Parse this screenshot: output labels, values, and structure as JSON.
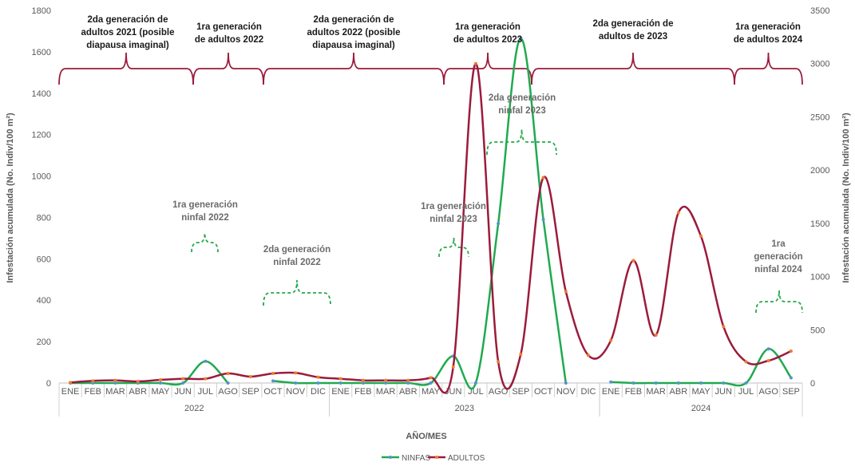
{
  "chart_data": {
    "type": "line",
    "xlabel": "AÑO/MES",
    "ylabel_left": "Infestación acumulada (No. Indiv/100 m²)",
    "ylabel_right": "Infestación acumulada (No. Indiv/100 m²)",
    "ylim_left": [
      0,
      1800
    ],
    "ylim_right": [
      0,
      3500
    ],
    "yticks_left": [
      "0",
      "200",
      "400",
      "600",
      "800",
      "1000",
      "1200",
      "1400",
      "1600",
      "1800"
    ],
    "yticks_right": [
      "0",
      "500",
      "1000",
      "1500",
      "2000",
      "2500",
      "3000",
      "3500"
    ],
    "months": [
      "ENE",
      "FEB",
      "MAR",
      "ABR",
      "MAY",
      "JUN",
      "JUL",
      "AGO",
      "SEP",
      "OCT",
      "NOV",
      "DIC",
      "ENE",
      "FEB",
      "MAR",
      "ABR",
      "MAY",
      "JUN",
      "JUL",
      "AGO",
      "SEP",
      "OCT",
      "NOV",
      "DIC",
      "ENE",
      "FEB",
      "MAR",
      "ABR",
      "MAY",
      "JUN",
      "JUL",
      "AGO",
      "SEP"
    ],
    "years": [
      {
        "label": "2022",
        "start": 0,
        "end": 11
      },
      {
        "label": "2023",
        "start": 12,
        "end": 23
      },
      {
        "label": "2024",
        "start": 24,
        "end": 32
      }
    ],
    "grid": false,
    "legend_position": "bottom",
    "series": [
      {
        "name": "NINFAS",
        "axis": "left",
        "color": "#1faa4f",
        "marker_color": "#5b8fd6",
        "values": [
          0,
          0,
          0,
          0,
          0,
          0,
          105,
          0,
          null,
          10,
          0,
          0,
          0,
          0,
          0,
          0,
          0,
          130,
          0,
          770,
          1665,
          790,
          0,
          null,
          5,
          0,
          0,
          0,
          0,
          0,
          0,
          165,
          25
        ]
      },
      {
        "name": "ADULTOS",
        "axis": "right",
        "color": "#9b1b3c",
        "marker_color": "#f07a2a",
        "values": [
          5,
          20,
          25,
          15,
          30,
          40,
          40,
          90,
          60,
          90,
          95,
          55,
          40,
          25,
          25,
          25,
          50,
          150,
          3000,
          200,
          270,
          1930,
          860,
          260,
          400,
          1150,
          450,
          1600,
          1380,
          530,
          200,
          210,
          300
        ]
      }
    ],
    "annotations_adults": [
      {
        "lines": [
          "2da generación de",
          "adultos 2021 (posible",
          "diapausa imaginal)"
        ]
      },
      {
        "lines": [
          "1ra generación",
          "de adultos 2022"
        ]
      },
      {
        "lines": [
          "2da generación de",
          "adultos 2022 (posible",
          "diapausa imaginal)"
        ]
      },
      {
        "lines": [
          "1ra generación",
          "de adultos 2023"
        ]
      },
      {
        "lines": [
          "2da generación de",
          "adultos de 2023"
        ]
      },
      {
        "lines": [
          "1ra generación",
          "de adultos 2024"
        ]
      }
    ],
    "annotations_nymphs": [
      {
        "lines": [
          "1ra generación",
          "ninfal 2022"
        ]
      },
      {
        "lines": [
          "2da generación",
          "ninfal 2022"
        ]
      },
      {
        "lines": [
          "1ra generación",
          "ninfal 2023"
        ]
      },
      {
        "lines": [
          "2da generación",
          "ninfal 2023"
        ]
      },
      {
        "lines": [
          "1ra",
          "generación",
          "ninfal 2024"
        ]
      }
    ]
  }
}
